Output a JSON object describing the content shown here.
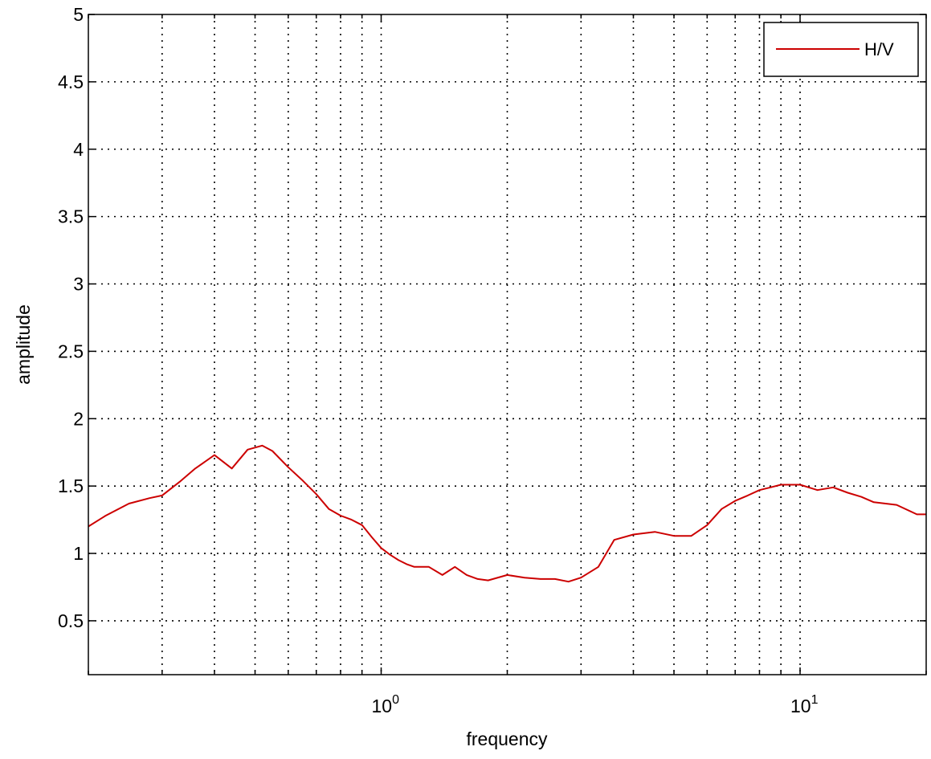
{
  "chart_data": {
    "type": "line",
    "title": "",
    "xlabel": "frequency",
    "ylabel": "amplitude",
    "x_scale": "log",
    "xlim": [
      0.2,
      20
    ],
    "ylim": [
      0.1,
      5
    ],
    "grid": true,
    "grid_style": "dotted",
    "x_major_ticks": [
      {
        "value": 1,
        "base": "10",
        "exponent": "0"
      },
      {
        "value": 10,
        "base": "10",
        "exponent": "1"
      }
    ],
    "y_ticks": [
      {
        "value": 0.5,
        "label": "0.5"
      },
      {
        "value": 1,
        "label": "1"
      },
      {
        "value": 1.5,
        "label": "1.5"
      },
      {
        "value": 2,
        "label": "2"
      },
      {
        "value": 2.5,
        "label": "2.5"
      },
      {
        "value": 3,
        "label": "3"
      },
      {
        "value": 3.5,
        "label": "3.5"
      },
      {
        "value": 4,
        "label": "4"
      },
      {
        "value": 4.5,
        "label": "4.5"
      },
      {
        "value": 5,
        "label": "5"
      }
    ],
    "legend": {
      "placement": "top-right",
      "entries": [
        "H/V"
      ]
    },
    "series": [
      {
        "name": "H/V",
        "color": "#cc0000",
        "x": [
          0.2,
          0.22,
          0.25,
          0.28,
          0.3,
          0.33,
          0.36,
          0.4,
          0.44,
          0.48,
          0.52,
          0.55,
          0.6,
          0.65,
          0.7,
          0.75,
          0.8,
          0.85,
          0.9,
          0.95,
          1.0,
          1.05,
          1.1,
          1.15,
          1.2,
          1.3,
          1.4,
          1.5,
          1.6,
          1.7,
          1.8,
          2.0,
          2.2,
          2.4,
          2.6,
          2.8,
          3.0,
          3.3,
          3.6,
          4.0,
          4.5,
          5.0,
          5.5,
          6.0,
          6.5,
          7.0,
          7.5,
          8.0,
          8.5,
          9.0,
          10.0,
          11.0,
          12.0,
          13.0,
          14.0,
          15.0,
          17.0,
          19.0,
          20.0
        ],
        "y": [
          1.2,
          1.28,
          1.37,
          1.41,
          1.43,
          1.53,
          1.63,
          1.73,
          1.63,
          1.77,
          1.8,
          1.76,
          1.64,
          1.54,
          1.44,
          1.33,
          1.28,
          1.25,
          1.21,
          1.12,
          1.04,
          0.99,
          0.95,
          0.92,
          0.9,
          0.9,
          0.84,
          0.9,
          0.84,
          0.81,
          0.8,
          0.84,
          0.82,
          0.81,
          0.81,
          0.79,
          0.82,
          0.9,
          1.1,
          1.14,
          1.16,
          1.13,
          1.13,
          1.21,
          1.33,
          1.39,
          1.43,
          1.47,
          1.49,
          1.51,
          1.51,
          1.47,
          1.49,
          1.45,
          1.42,
          1.38,
          1.36,
          1.29,
          1.29
        ]
      }
    ]
  }
}
